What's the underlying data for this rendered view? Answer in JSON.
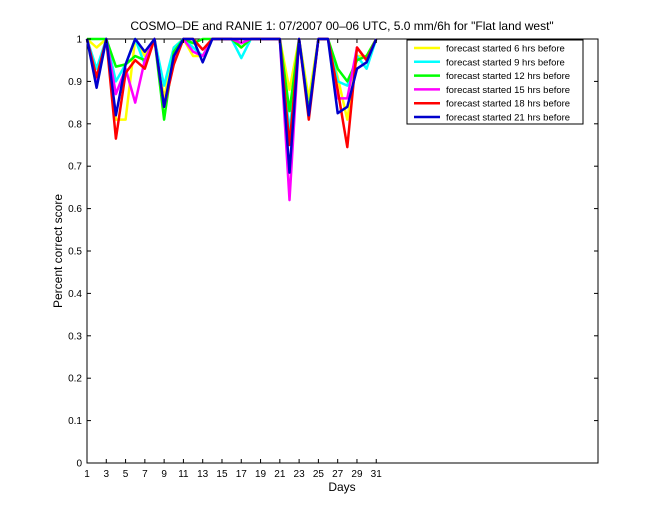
{
  "chart_data": {
    "type": "line",
    "title": "COSMO–DE and RANIE 1: 07/2007 00–06 UTC, 5.0 mm/6h for \"Flat land west\"",
    "xlabel": "Days",
    "ylabel": "Percent correct score",
    "xlim": [
      1,
      54
    ],
    "ylim": [
      0,
      1
    ],
    "xticks": [
      1,
      3,
      5,
      7,
      9,
      11,
      13,
      15,
      17,
      19,
      21,
      23,
      25,
      27,
      29,
      31
    ],
    "yticks": [
      0,
      0.1,
      0.2,
      0.3,
      0.4,
      0.5,
      0.6,
      0.7,
      0.8,
      0.9,
      1
    ],
    "ytick_labels": [
      "0",
      "0.1",
      "0.2",
      "0.3",
      "0.4",
      "0.5",
      "0.6",
      "0.7",
      "0.8",
      "0.9",
      "1"
    ],
    "legend_position": "top-right",
    "x": [
      1,
      2,
      3,
      4,
      5,
      6,
      7,
      8,
      9,
      10,
      11,
      12,
      13,
      14,
      15,
      16,
      17,
      18,
      19,
      20,
      21,
      22,
      23,
      24,
      25,
      26,
      27,
      28,
      29,
      30,
      31
    ],
    "series": [
      {
        "name": "forecast started 6 hrs before",
        "color": "#ffff00",
        "values": [
          1,
          0.98,
          1,
          0.81,
          0.81,
          1,
          0.96,
          1,
          0.86,
          0.98,
          1,
          0.96,
          0.96,
          1,
          1,
          1,
          0.98,
          1,
          1,
          1,
          1,
          0.88,
          1,
          0.86,
          1,
          1,
          0.91,
          0.81,
          0.96,
          0.96,
          1
        ]
      },
      {
        "name": "forecast started 9 hrs before",
        "color": "#00ffff",
        "values": [
          1,
          0.93,
          1,
          0.9,
          0.94,
          1,
          0.94,
          1,
          0.89,
          0.98,
          1,
          0.98,
          0.96,
          1,
          1,
          1,
          0.955,
          1,
          1,
          1,
          1,
          0.78,
          1,
          0.83,
          1,
          1,
          0.9,
          0.89,
          0.96,
          0.93,
          1
        ]
      },
      {
        "name": "forecast started 12 hrs before",
        "color": "#00ff00",
        "values": [
          1,
          1,
          1,
          0.935,
          0.94,
          0.96,
          0.95,
          1,
          0.81,
          0.97,
          1,
          0.99,
          1,
          1,
          1,
          1,
          0.98,
          1,
          1,
          1,
          1,
          0.83,
          1,
          0.83,
          1,
          1,
          0.93,
          0.9,
          0.95,
          0.96,
          1
        ]
      },
      {
        "name": "forecast started 15 hrs before",
        "color": "#ff00ff",
        "values": [
          1,
          0.9,
          1,
          0.87,
          0.93,
          0.85,
          0.95,
          1,
          0.84,
          0.95,
          1,
          0.97,
          0.96,
          1,
          1,
          1,
          0.99,
          1,
          1,
          1,
          1,
          0.62,
          1,
          0.82,
          1,
          1,
          0.86,
          0.86,
          0.98,
          0.95,
          1
        ]
      },
      {
        "name": "forecast started 18 hrs before",
        "color": "#ff0000",
        "values": [
          1,
          0.91,
          1,
          0.765,
          0.92,
          0.95,
          0.93,
          1,
          0.84,
          0.94,
          1,
          1,
          0.975,
          1,
          1,
          1,
          1,
          1,
          1,
          1,
          1,
          0.75,
          1,
          0.81,
          1,
          1,
          0.88,
          0.745,
          0.98,
          0.95,
          1
        ]
      },
      {
        "name": "forecast started 21 hrs before",
        "color": "#0000cc",
        "values": [
          1,
          0.885,
          1,
          0.82,
          0.94,
          1,
          0.97,
          1,
          0.84,
          0.96,
          1,
          1,
          0.945,
          1,
          1,
          1,
          1,
          1,
          1,
          1,
          1,
          0.685,
          1,
          0.82,
          1,
          1,
          0.825,
          0.84,
          0.93,
          0.945,
          1
        ]
      }
    ]
  }
}
